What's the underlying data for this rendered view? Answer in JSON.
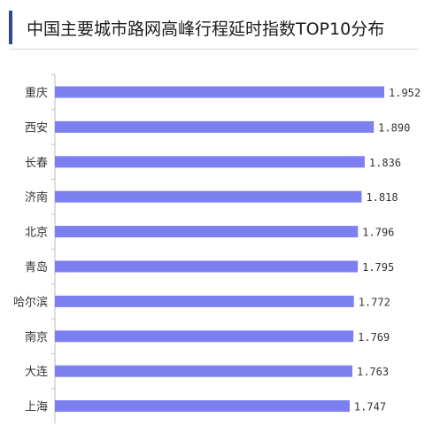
{
  "chart_data": {
    "type": "bar",
    "orientation": "horizontal",
    "title": "中国主要城市路网高峰行程延时指数TOP10分布",
    "categories": [
      "重庆",
      "西安",
      "长春",
      "济南",
      "北京",
      "青岛",
      "哈尔滨",
      "南京",
      "大连",
      "上海"
    ],
    "values": [
      1.952,
      1.89,
      1.836,
      1.818,
      1.796,
      1.795,
      1.772,
      1.769,
      1.763,
      1.747
    ],
    "value_labels": [
      "1.952",
      "1.890",
      "1.836",
      "1.818",
      "1.796",
      "1.795",
      "1.772",
      "1.769",
      "1.763",
      "1.747"
    ],
    "xlim": [
      0,
      1.952
    ],
    "grid": false,
    "bar_color": "#7b7ff0",
    "label_color": "#333333"
  }
}
